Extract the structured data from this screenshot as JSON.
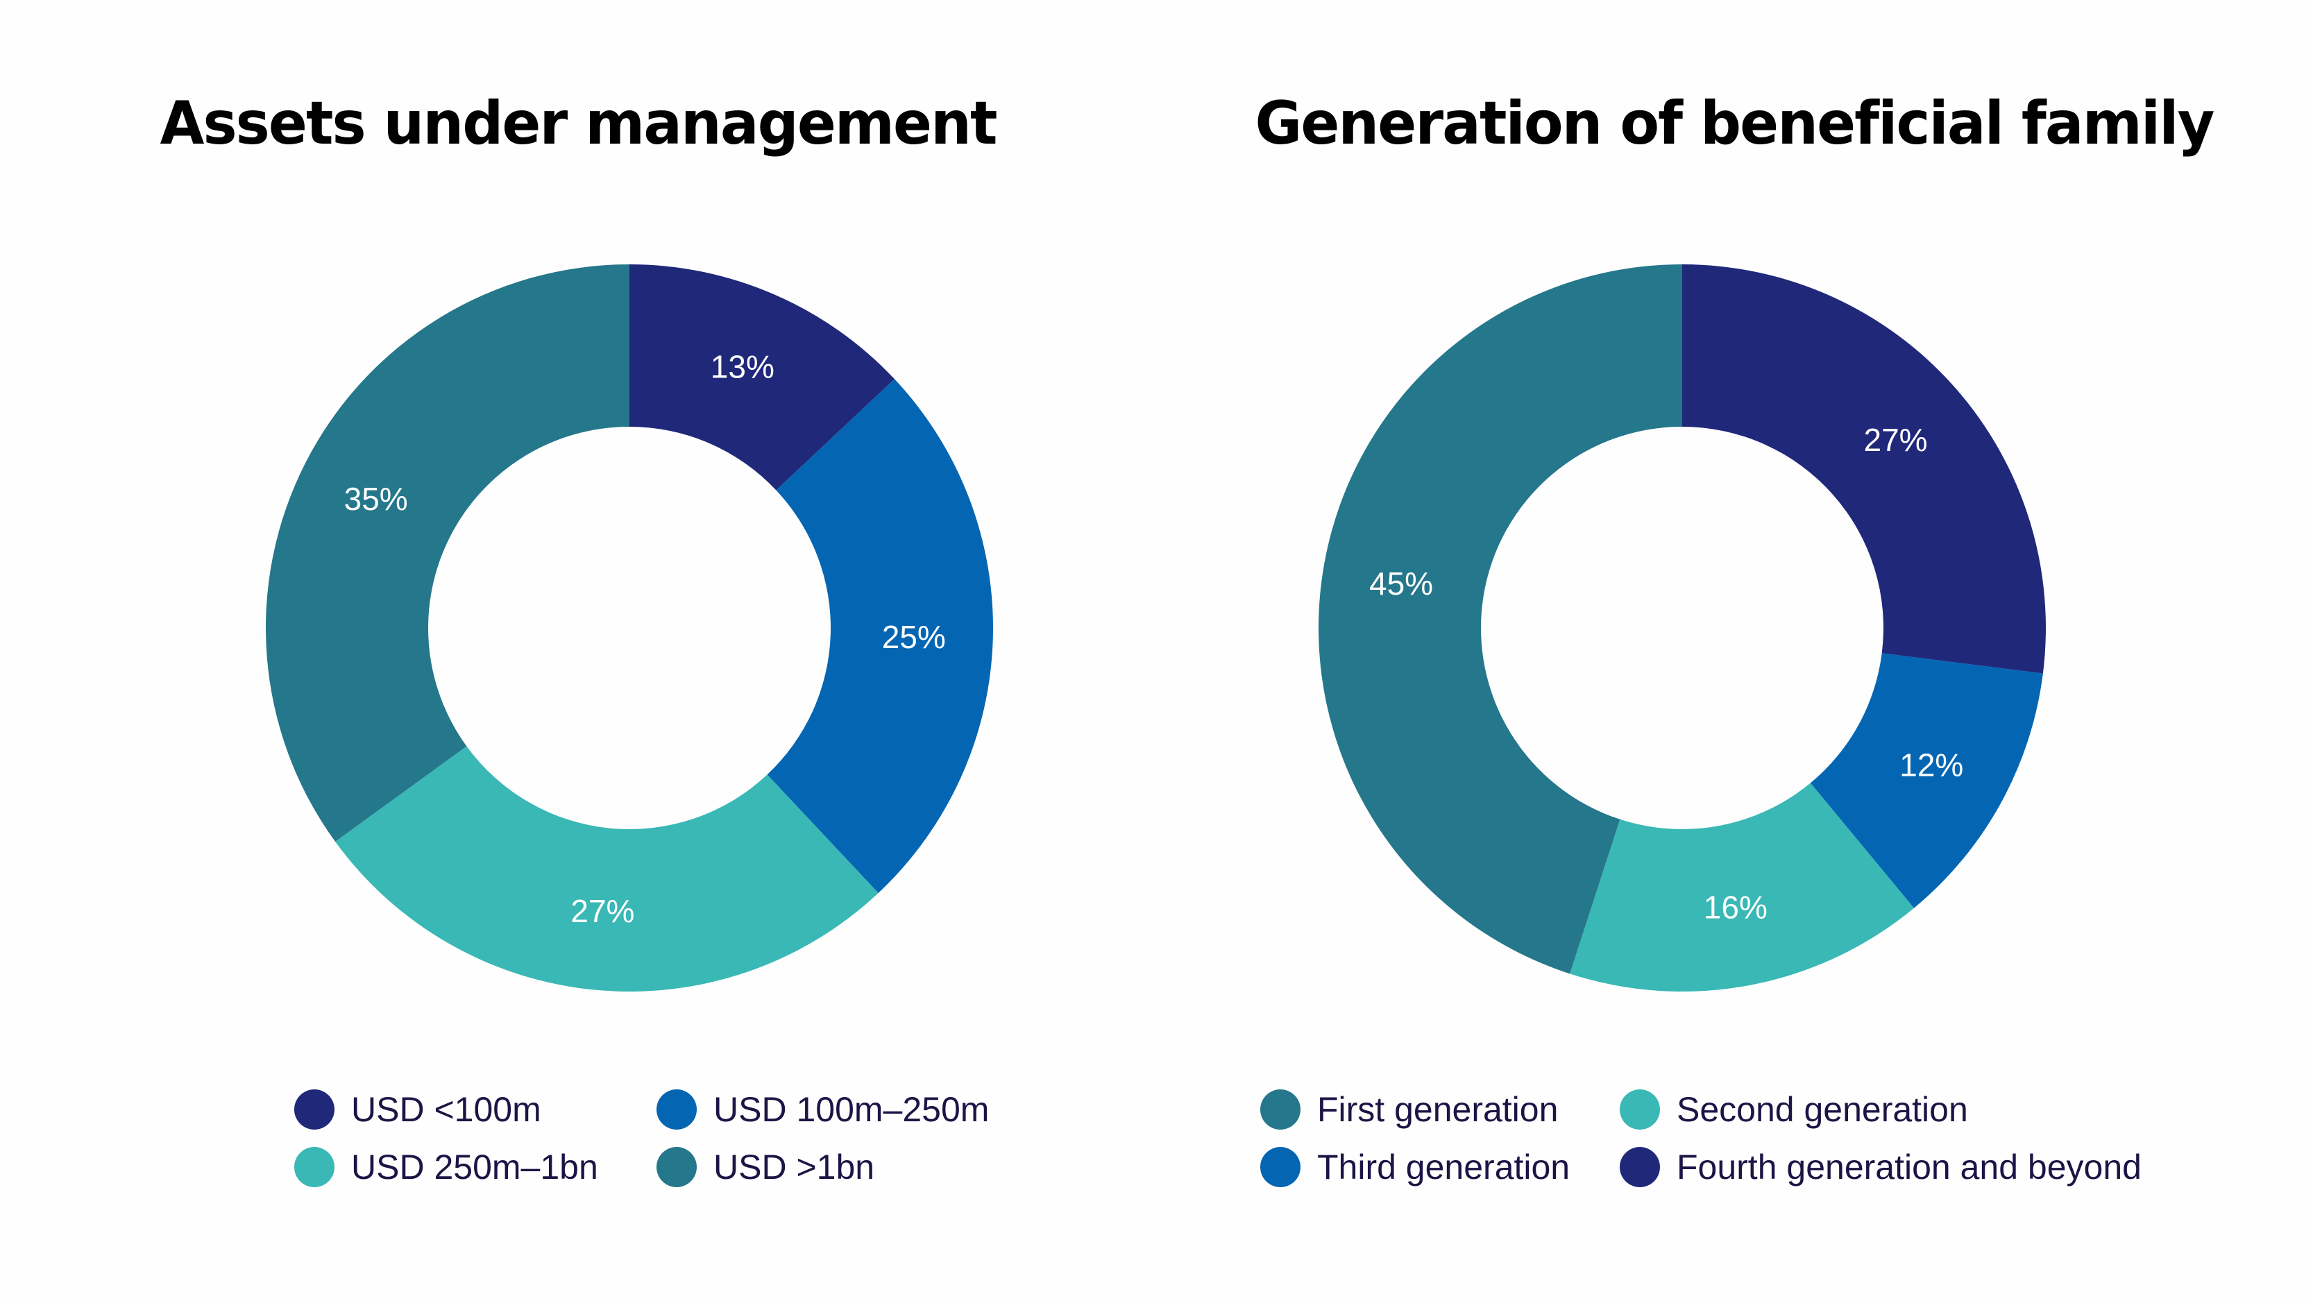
{
  "chart_data": [
    {
      "type": "pie",
      "variant": "donut",
      "title": "Assets under management",
      "start_angle_deg": 0,
      "direction": "clockwise",
      "slices": [
        {
          "label": "USD <100m",
          "value": 13,
          "display": "13%",
          "color": "#20287a"
        },
        {
          "label": "USD 100m–250m",
          "value": 25,
          "display": "25%",
          "color": "#0466b3"
        },
        {
          "label": "USD 250m–1bn",
          "value": 27,
          "display": "27%",
          "color": "#39b8b5"
        },
        {
          "label": "USD >1bn",
          "value": 35,
          "display": "35%",
          "color": "#25778b"
        }
      ],
      "legend": {
        "placement": "bottom",
        "items": [
          {
            "label": "USD <100m",
            "color": "#20287a"
          },
          {
            "label": "USD 100m–250m",
            "color": "#0466b3"
          },
          {
            "label": "USD 250m–1bn",
            "color": "#39b8b5"
          },
          {
            "label": "USD >1bn",
            "color": "#25778b"
          }
        ]
      }
    },
    {
      "type": "pie",
      "variant": "donut",
      "title": "Generation of beneficial family",
      "start_angle_deg": 0,
      "direction": "clockwise",
      "slices": [
        {
          "label": "Fourth generation and beyond",
          "value": 27,
          "display": "27%",
          "color": "#20287a"
        },
        {
          "label": "Third generation",
          "value": 12,
          "display": "12%",
          "color": "#0466b3"
        },
        {
          "label": "Second generation",
          "value": 16,
          "display": "16%",
          "color": "#39b8b5"
        },
        {
          "label": "First generation",
          "value": 45,
          "display": "45%",
          "color": "#25778b"
        }
      ],
      "legend": {
        "placement": "bottom",
        "items": [
          {
            "label": "First generation",
            "color": "#25778b"
          },
          {
            "label": "Second generation",
            "color": "#39b8b5"
          },
          {
            "label": "Third generation",
            "color": "#0466b3"
          },
          {
            "label": "Fourth generation and beyond",
            "color": "#20287a"
          }
        ]
      }
    }
  ]
}
